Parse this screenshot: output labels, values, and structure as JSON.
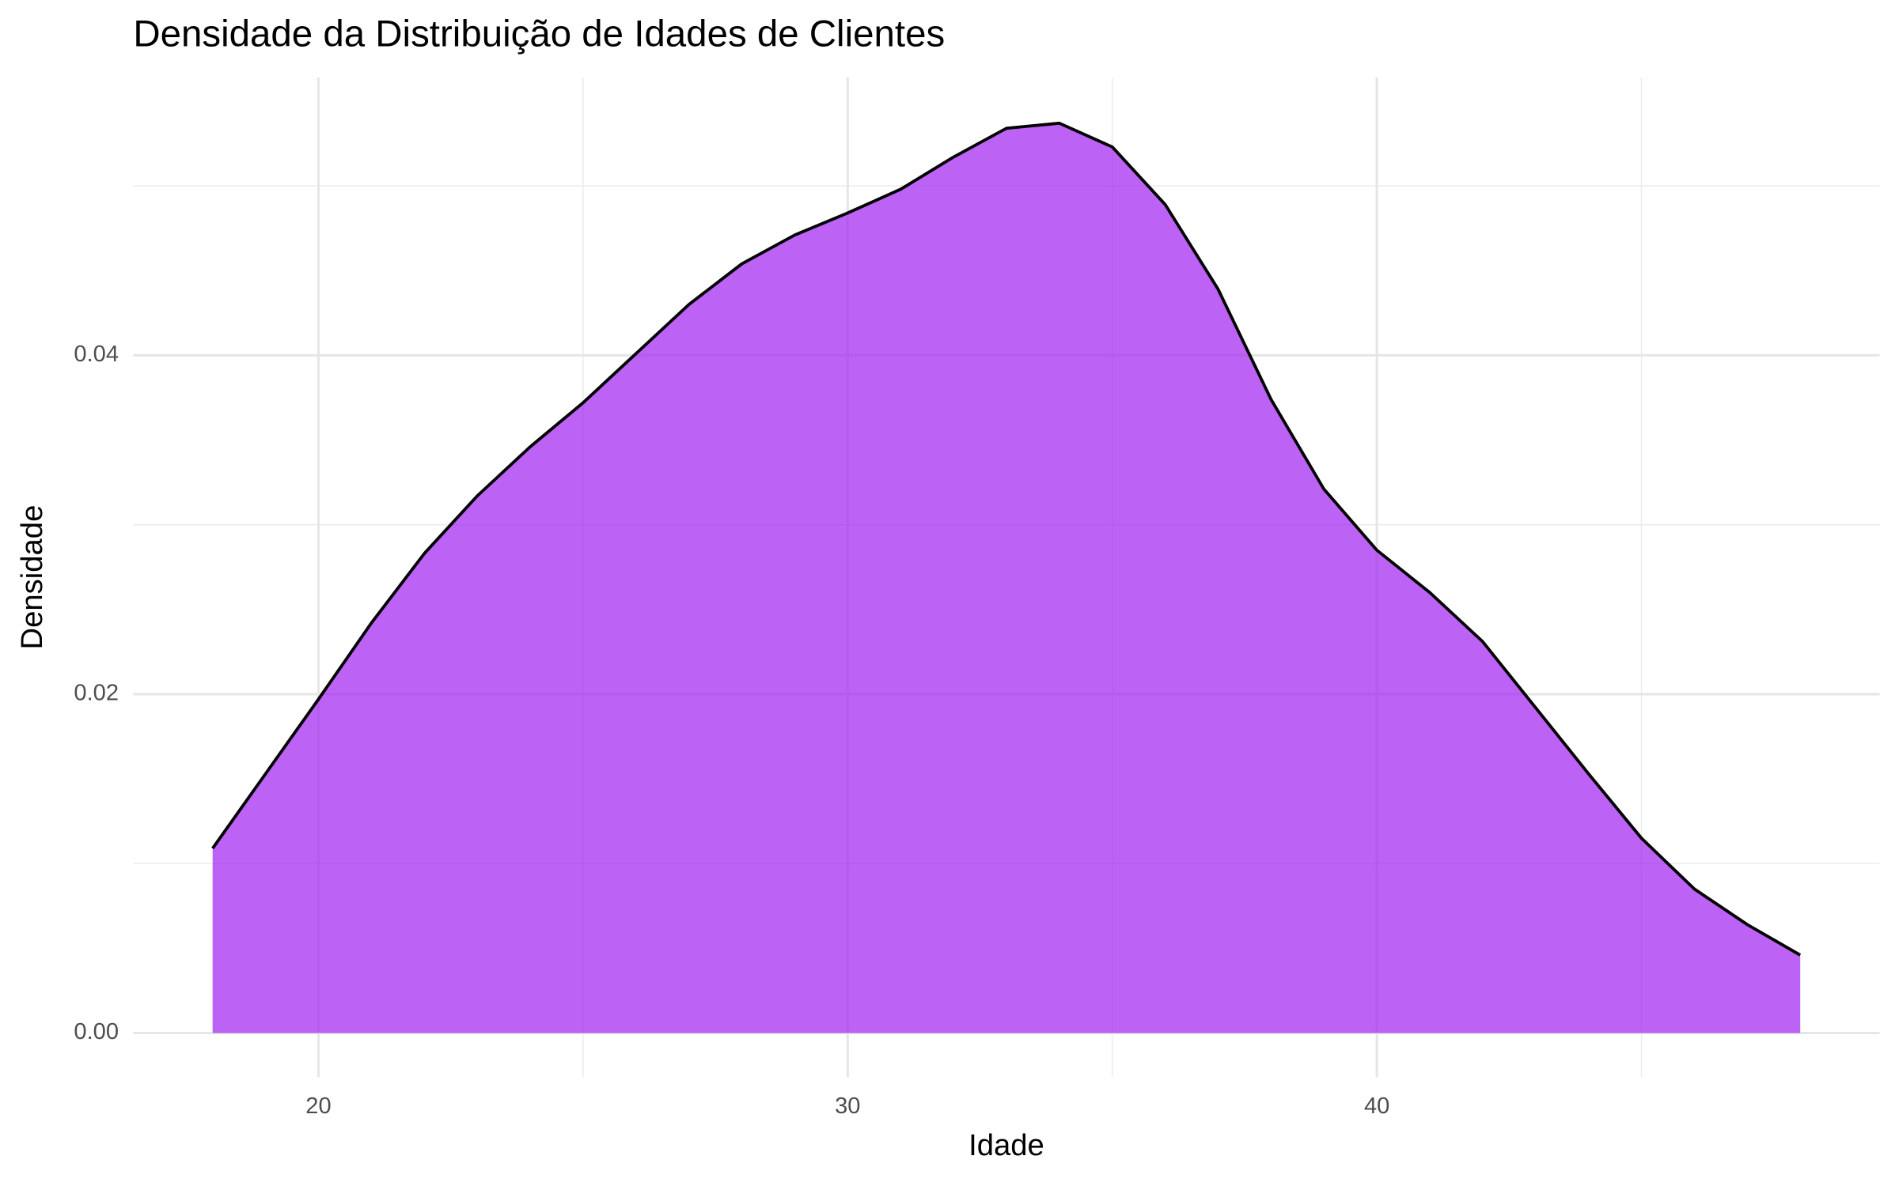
{
  "chart_data": {
    "type": "density",
    "title": "Densidade da Distribuição de Idades de Clientes",
    "x_label": "Idade",
    "y_label": "Densidade",
    "x": [
      18,
      19,
      20,
      21,
      22,
      23,
      24,
      25,
      26,
      27,
      28,
      29,
      30,
      31,
      32,
      33,
      34,
      35,
      36,
      37,
      38,
      39,
      40,
      41,
      42,
      43,
      44,
      45,
      46,
      47,
      48
    ],
    "values": [
      0.0109,
      0.0153,
      0.0197,
      0.0242,
      0.0283,
      0.0317,
      0.0346,
      0.0372,
      0.0401,
      0.043,
      0.0454,
      0.0471,
      0.0484,
      0.0498,
      0.0517,
      0.0534,
      0.0537,
      0.0523,
      0.0489,
      0.0439,
      0.0374,
      0.0321,
      0.0285,
      0.026,
      0.0231,
      0.0192,
      0.0153,
      0.0115,
      0.0085,
      0.0064,
      0.0046
    ],
    "color": "#a020f0",
    "alpha": 0.7,
    "line_color": "#000000",
    "xlim": [
      16.5,
      49.5
    ],
    "ylim": [
      -0.0026,
      0.0564
    ],
    "xticks": [
      20,
      30,
      40
    ],
    "yticks": [
      {
        "value": 0,
        "label": "0.00"
      },
      {
        "value": 0.02,
        "label": "0.02"
      },
      {
        "value": 0.04,
        "label": "0.04"
      }
    ],
    "x_minor_grid": [
      25,
      35,
      45
    ],
    "y_minor_grid": [
      0.01,
      0.03,
      0.05
    ],
    "grid": true
  }
}
